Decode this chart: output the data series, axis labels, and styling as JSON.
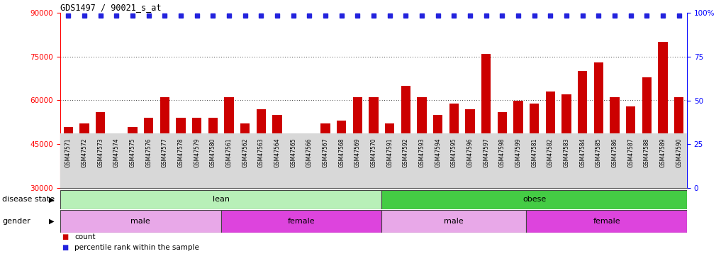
{
  "title": "GDS1497 / 90021_s_at",
  "samples": [
    "GSM47571",
    "GSM47572",
    "GSM47573",
    "GSM47574",
    "GSM47575",
    "GSM47576",
    "GSM47577",
    "GSM47578",
    "GSM47579",
    "GSM47580",
    "GSM47561",
    "GSM47562",
    "GSM47563",
    "GSM47564",
    "GSM47565",
    "GSM47566",
    "GSM47567",
    "GSM47568",
    "GSM47569",
    "GSM47570",
    "GSM47591",
    "GSM47592",
    "GSM47593",
    "GSM47594",
    "GSM47595",
    "GSM47596",
    "GSM47597",
    "GSM47598",
    "GSM47599",
    "GSM47581",
    "GSM47582",
    "GSM47583",
    "GSM47584",
    "GSM47585",
    "GSM47586",
    "GSM47587",
    "GSM47588",
    "GSM47589",
    "GSM47590"
  ],
  "values": [
    51000,
    52000,
    56000,
    47000,
    51000,
    54000,
    61000,
    54000,
    54000,
    54000,
    61000,
    52000,
    57000,
    55000,
    46000,
    44000,
    52000,
    53000,
    61000,
    61000,
    52000,
    65000,
    61000,
    55000,
    59000,
    57000,
    76000,
    56000,
    60000,
    59000,
    63000,
    62000,
    70000,
    73000,
    61000,
    58000,
    68000,
    80000,
    61000
  ],
  "bar_color": "#cc0000",
  "percentile_color": "#2222dd",
  "ylim_left": [
    30000,
    90000
  ],
  "ylim_right": [
    0,
    100
  ],
  "yticks_left": [
    30000,
    45000,
    60000,
    75000,
    90000
  ],
  "yticks_right": [
    0,
    25,
    50,
    75,
    100
  ],
  "disease_state_groups": [
    {
      "label": "lean",
      "start": 0,
      "end": 20,
      "color": "#b8f0b8"
    },
    {
      "label": "obese",
      "start": 20,
      "end": 39,
      "color": "#44cc44"
    }
  ],
  "gender_groups": [
    {
      "label": "male",
      "start": 0,
      "end": 10,
      "color": "#e8a8e8"
    },
    {
      "label": "female",
      "start": 10,
      "end": 20,
      "color": "#dd44dd"
    },
    {
      "label": "male",
      "start": 20,
      "end": 29,
      "color": "#e8a8e8"
    },
    {
      "label": "female",
      "start": 29,
      "end": 39,
      "color": "#dd44dd"
    }
  ],
  "disease_state_label": "disease state",
  "gender_label": "gender",
  "legend_count_label": "count",
  "legend_percentile_label": "percentile rank within the sample",
  "bg_color": "#f0f0f0"
}
